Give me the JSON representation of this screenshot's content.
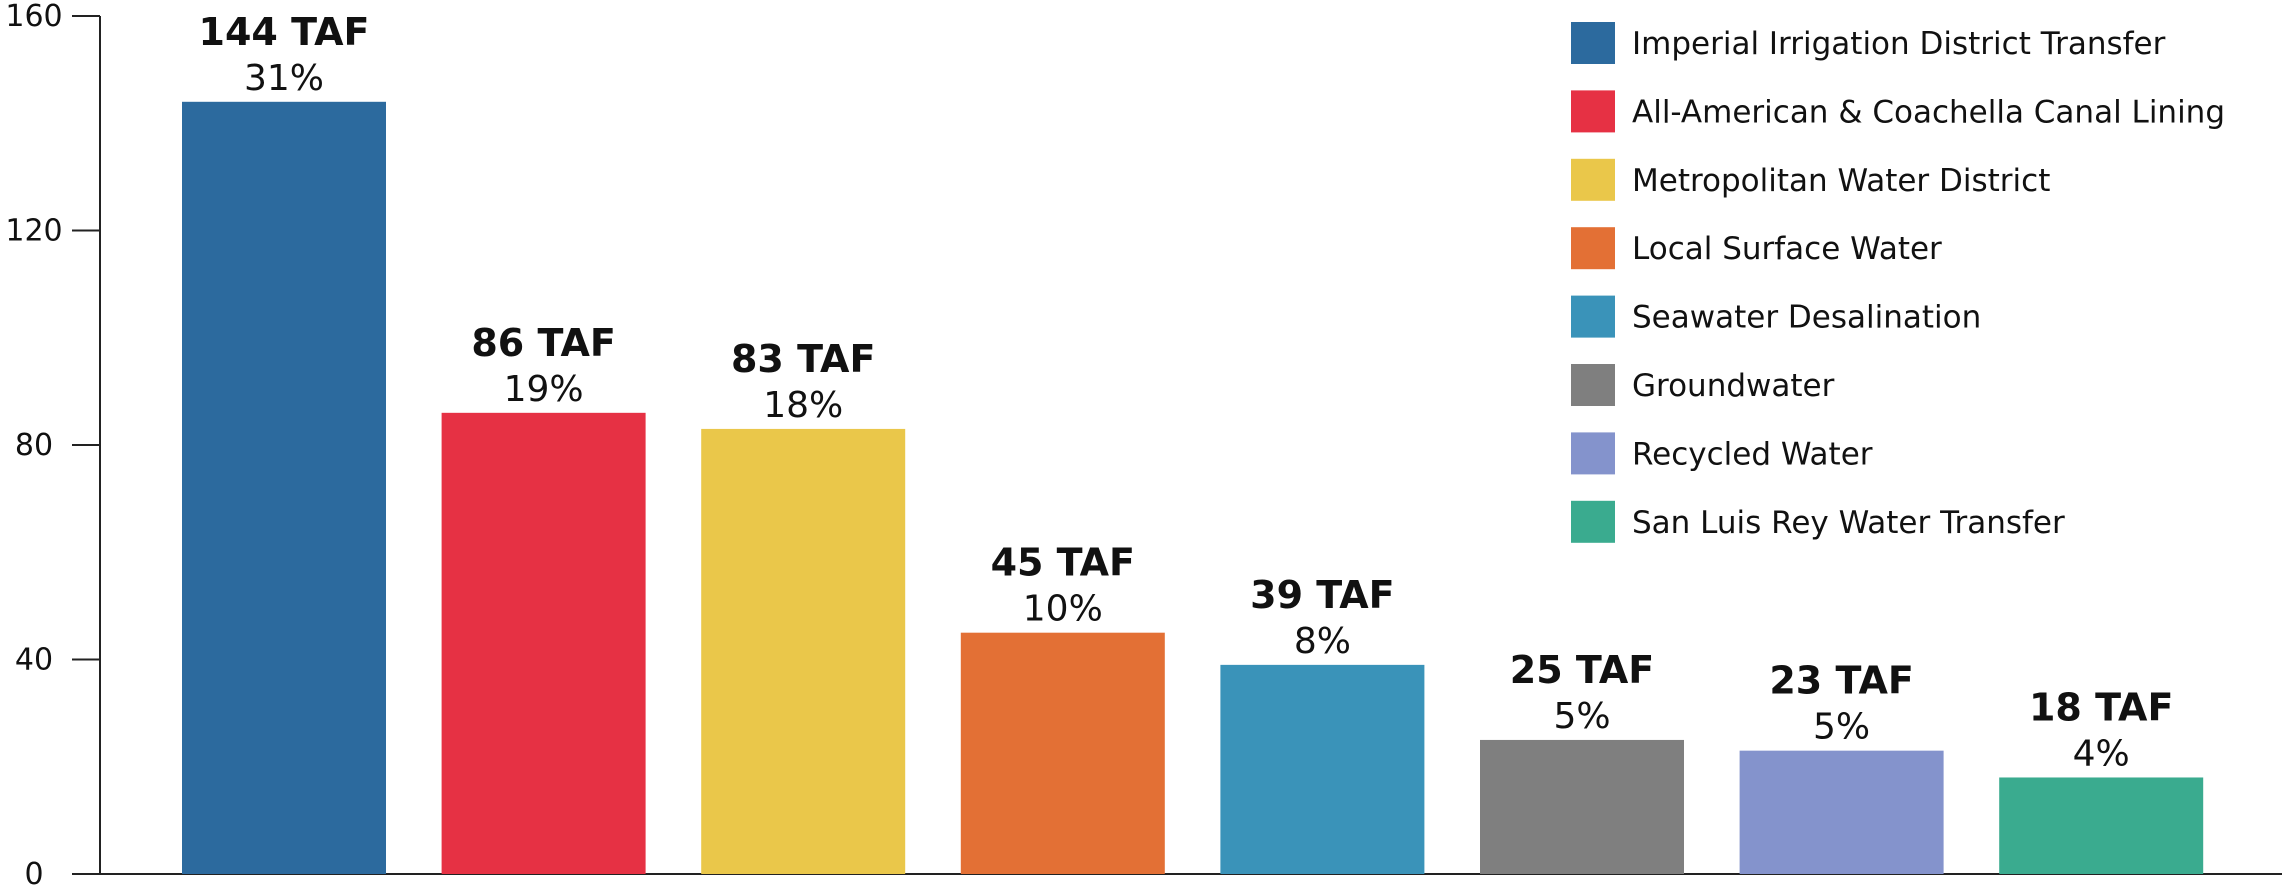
{
  "chart_data": {
    "type": "bar",
    "title": "",
    "xlabel": "",
    "ylabel": "",
    "ylim": [
      0,
      160
    ],
    "yticks": [
      0,
      40,
      80,
      120,
      160
    ],
    "grid": false,
    "legend_position": "top-right",
    "categories": [
      "Imperial Irrigation District Transfer",
      "All-American & Coachella Canal Lining",
      "Metropolitan Water District",
      "Local Surface Water",
      "Seawater Desalination",
      "Groundwater",
      "Recycled Water",
      "San Luis Rey Water Transfer"
    ],
    "values": [
      144,
      86,
      83,
      45,
      39,
      25,
      23,
      18
    ],
    "value_labels": [
      "144 TAF",
      "86 TAF",
      "83 TAF",
      "45 TAF",
      "39 TAF",
      "25 TAF",
      "23 TAF",
      "18 TAF"
    ],
    "percent_labels": [
      "31%",
      "19%",
      "18%",
      "10%",
      "8%",
      "5%",
      "5%",
      "4%"
    ],
    "colors": [
      "#2c6a9e",
      "#e63144",
      "#eac74a",
      "#e37035",
      "#3a93b9",
      "#7f7f7f",
      "#8493cc",
      "#3aab8f"
    ]
  }
}
